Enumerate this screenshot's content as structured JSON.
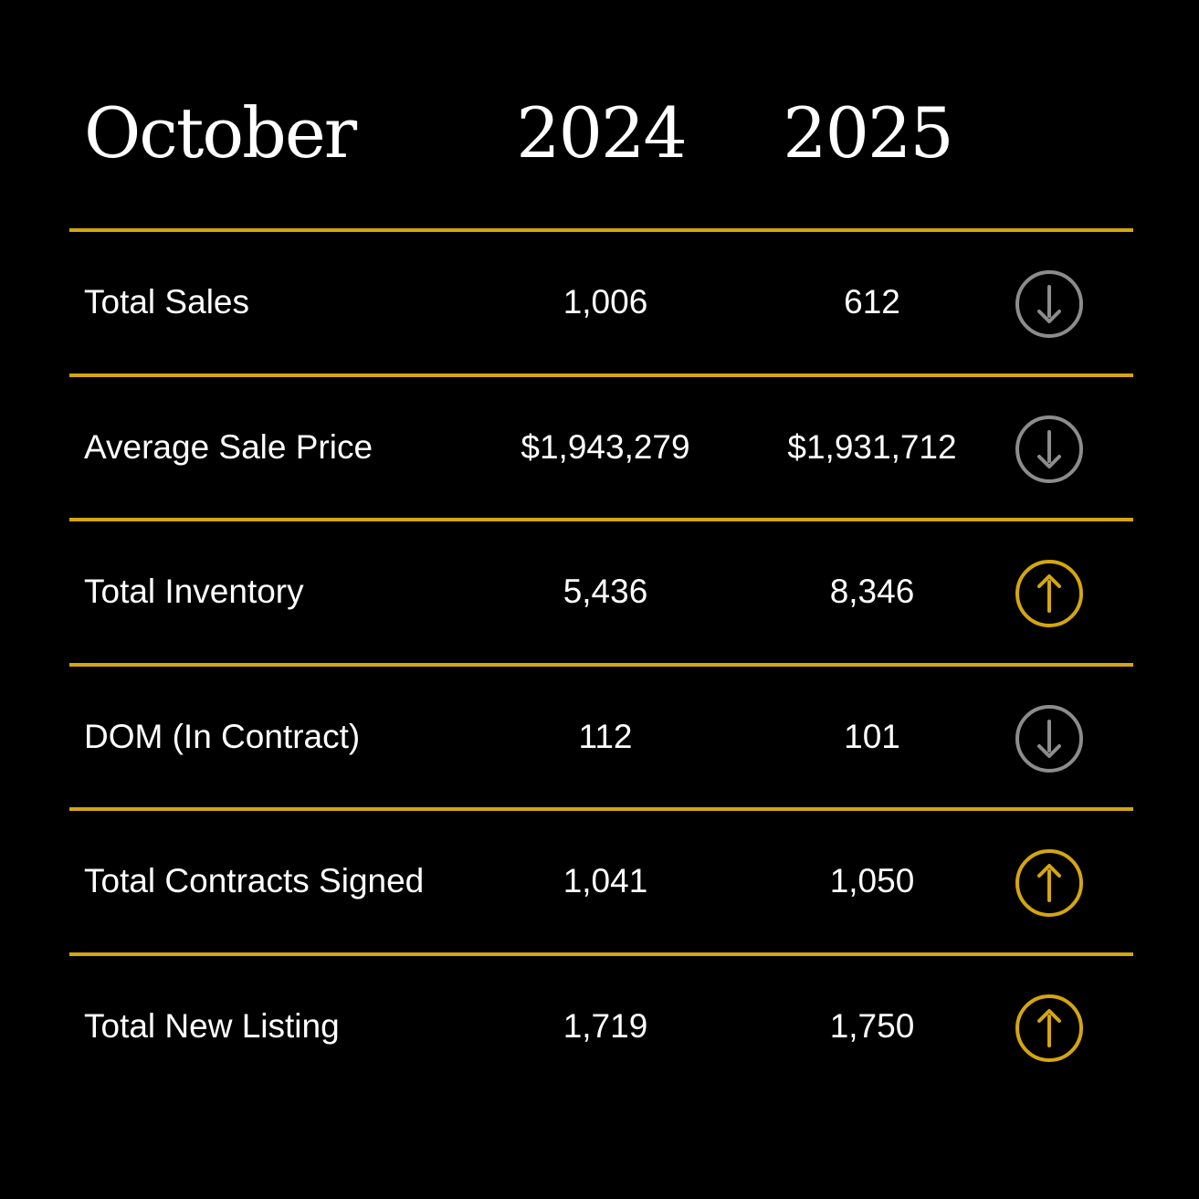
{
  "header": {
    "month": "October",
    "year_1": "2024",
    "year_2": "2025"
  },
  "colors": {
    "background": "#000000",
    "divider": "#d4a60f",
    "up": "#d4a60f",
    "down": "#8c8c8c"
  },
  "rows": [
    {
      "label": "Total Sales",
      "value_2024": "1,006",
      "value_2025": "612",
      "trend": "down",
      "icon": "arrow-down-circle-icon"
    },
    {
      "label": "Average Sale Price",
      "value_2024": "$1,943,279",
      "value_2025": "$1,931,712",
      "trend": "down",
      "icon": "arrow-down-circle-icon"
    },
    {
      "label": "Total Inventory",
      "value_2024": "5,436",
      "value_2025": "8,346",
      "trend": "up",
      "icon": "arrow-up-circle-icon"
    },
    {
      "label": "DOM (In Contract)",
      "value_2024": "112",
      "value_2025": "101",
      "trend": "down",
      "icon": "arrow-down-circle-icon"
    },
    {
      "label": "Total Contracts Signed",
      "value_2024": "1,041",
      "value_2025": "1,050",
      "trend": "up",
      "icon": "arrow-up-circle-icon"
    },
    {
      "label": "Total New Listing",
      "value_2024": "1,719",
      "value_2025": "1,750",
      "trend": "up",
      "icon": "arrow-up-circle-icon"
    }
  ]
}
